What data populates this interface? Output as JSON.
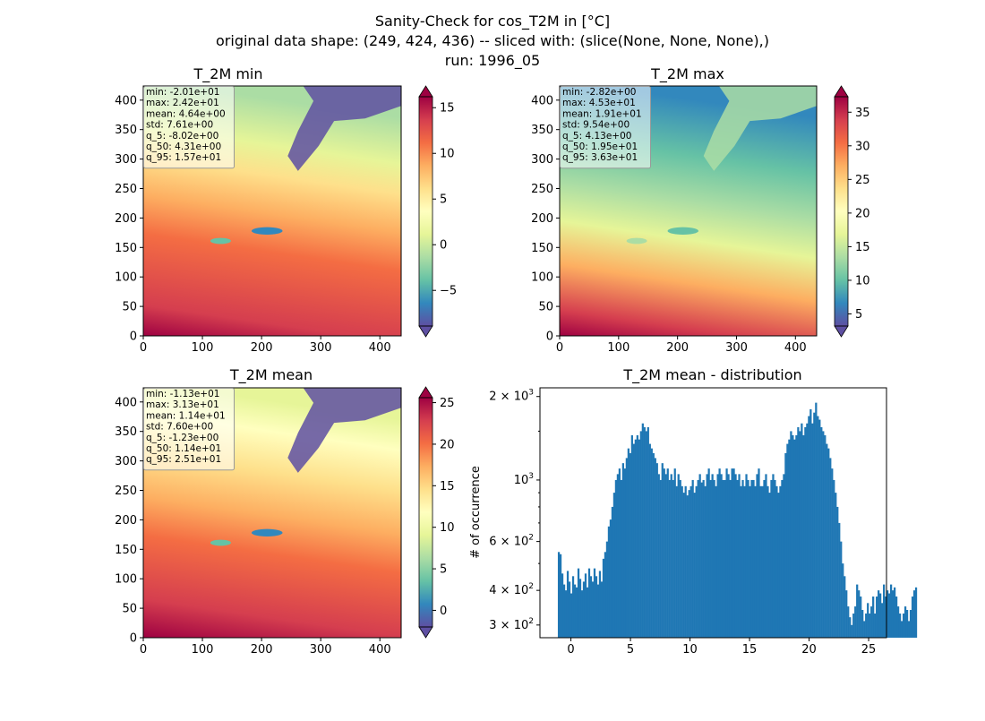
{
  "figure": {
    "title_lines": [
      "Sanity-Check for cos_T2M in [°C]",
      "original data shape: (249, 424, 436) -- sliced with: (slice(None, None, None),)",
      "run: 1996_05"
    ]
  },
  "colors": {
    "spectral_r": [
      "#5e4fa2",
      "#3288bd",
      "#66c2a5",
      "#abdda4",
      "#e6f598",
      "#ffffbf",
      "#fee08b",
      "#fdae61",
      "#f46d43",
      "#d53e4f",
      "#9e0142"
    ],
    "hist_bar": "#1f77b4"
  },
  "chart_data": [
    {
      "type": "heatmap",
      "title": "T_2M min",
      "x_ticks": [
        "0",
        "100",
        "200",
        "300",
        "400"
      ],
      "y_ticks": [
        "0",
        "50",
        "100",
        "150",
        "200",
        "250",
        "300",
        "350",
        "400"
      ],
      "xlim": [
        0,
        436
      ],
      "ylim": [
        0,
        424
      ],
      "colorbar_range": [
        -8.9,
        16.2
      ],
      "colorbar_ticks": [
        "15",
        "10",
        "5",
        "0",
        "−5"
      ],
      "colorbar_tick_values": [
        15,
        10,
        5,
        0,
        -5
      ],
      "stats": [
        "min: -2.01e+01",
        "max: 2.42e+01",
        "mean: 4.64e+00",
        "std: 7.61e+00",
        "q_5: -8.02e+00",
        "q_50: 4.31e+00",
        "q_95: 1.57e+01"
      ]
    },
    {
      "type": "heatmap",
      "title": "T_2M max",
      "x_ticks": [
        "0",
        "100",
        "200",
        "300",
        "400"
      ],
      "y_ticks": [
        "0",
        "50",
        "100",
        "150",
        "200",
        "250",
        "300",
        "350",
        "400"
      ],
      "xlim": [
        0,
        436
      ],
      "ylim": [
        0,
        424
      ],
      "colorbar_range": [
        3.2,
        37.3
      ],
      "colorbar_ticks": [
        "35",
        "30",
        "25",
        "20",
        "15",
        "10",
        "5"
      ],
      "colorbar_tick_values": [
        35,
        30,
        25,
        20,
        15,
        10,
        5
      ],
      "stats": [
        "min: -2.82e+00",
        "max: 4.53e+01",
        "mean: 1.91e+01",
        "std: 9.54e+00",
        "q_5: 4.13e+00",
        "q_50: 1.95e+01",
        "q_95: 3.63e+01"
      ]
    },
    {
      "type": "heatmap",
      "title": "T_2M mean",
      "x_ticks": [
        "0",
        "100",
        "200",
        "300",
        "400"
      ],
      "y_ticks": [
        "0",
        "50",
        "100",
        "150",
        "200",
        "250",
        "300",
        "350",
        "400"
      ],
      "xlim": [
        0,
        436
      ],
      "ylim": [
        0,
        424
      ],
      "colorbar_range": [
        -2.0,
        25.6
      ],
      "colorbar_ticks": [
        "25",
        "20",
        "15",
        "10",
        "5",
        "0"
      ],
      "colorbar_tick_values": [
        25,
        20,
        15,
        10,
        5,
        0
      ],
      "stats": [
        "min: -1.13e+01",
        "max: 3.13e+01",
        "mean: 1.14e+01",
        "std: 7.60e+00",
        "q_5: -1.23e+00",
        "q_50: 1.14e+01",
        "q_95: 2.51e+01"
      ]
    },
    {
      "type": "bar",
      "title": "T_2M mean - distribution",
      "ylabel": "# of occurrence",
      "y_scale": "log",
      "xlim": [
        -2.6,
        26.5
      ],
      "ylim": [
        270,
        2150
      ],
      "x_ticks": [
        "0",
        "5",
        "10",
        "15",
        "20",
        "25"
      ],
      "x_tick_values": [
        0,
        5,
        10,
        15,
        20,
        25
      ],
      "y_ticks": [
        {
          "base": "3",
          "exp": "2",
          "value": 300
        },
        {
          "base": "4",
          "exp": "2",
          "value": 400
        },
        {
          "base": "6",
          "exp": "2",
          "value": 600
        },
        {
          "base": "",
          "exp": "3",
          "value": 1000
        },
        {
          "base": "2",
          "exp": "3",
          "value": 2000
        }
      ],
      "bin_start": -1.1,
      "bin_width": 0.15,
      "counts": [
        550,
        540,
        460,
        420,
        400,
        470,
        430,
        390,
        450,
        420,
        410,
        480,
        440,
        400,
        430,
        460,
        410,
        480,
        450,
        430,
        480,
        450,
        420,
        470,
        430,
        520,
        550,
        600,
        680,
        720,
        800,
        900,
        1000,
        1050,
        1100,
        1000,
        1150,
        1100,
        1200,
        1300,
        1250,
        1450,
        1350,
        1400,
        1450,
        1400,
        1500,
        1600,
        1550,
        1500,
        1550,
        1350,
        1300,
        1250,
        1200,
        1150,
        1050,
        1000,
        1150,
        1100,
        1050,
        1100,
        1000,
        1050,
        1000,
        1100,
        950,
        1050,
        1000,
        950,
        900,
        950,
        880,
        920,
        950,
        1000,
        900,
        950,
        1000,
        1050,
        980,
        1000,
        950,
        1050,
        1100,
        1000,
        1050,
        1000,
        950,
        1050,
        1100,
        1050,
        1000,
        1000,
        1100,
        1050,
        1000,
        1100,
        1100,
        1050,
        1000,
        1050,
        950,
        1000,
        950,
        1050,
        1000,
        950,
        1000,
        1000,
        950,
        1050,
        1100,
        950,
        950,
        1000,
        1050,
        950,
        900,
        1000,
        1050,
        1000,
        950,
        900,
        950,
        1000,
        1050,
        1250,
        1350,
        1400,
        1500,
        1450,
        1400,
        1450,
        1550,
        1500,
        1600,
        1450,
        1550,
        1600,
        1700,
        1800,
        1600,
        1750,
        1900,
        1700,
        1650,
        1550,
        1500,
        1450,
        1350,
        1300,
        1200,
        1100,
        1000,
        900,
        800,
        700,
        600,
        500,
        450,
        400,
        350,
        320,
        300,
        330,
        350,
        420,
        400,
        380,
        340,
        310,
        330,
        360,
        330,
        350,
        380,
        330,
        380,
        400,
        390,
        360,
        420,
        380,
        400,
        390,
        420,
        400,
        410,
        380,
        350,
        330,
        310,
        330,
        350,
        340,
        310,
        340,
        380,
        400,
        410
      ]
    }
  ]
}
